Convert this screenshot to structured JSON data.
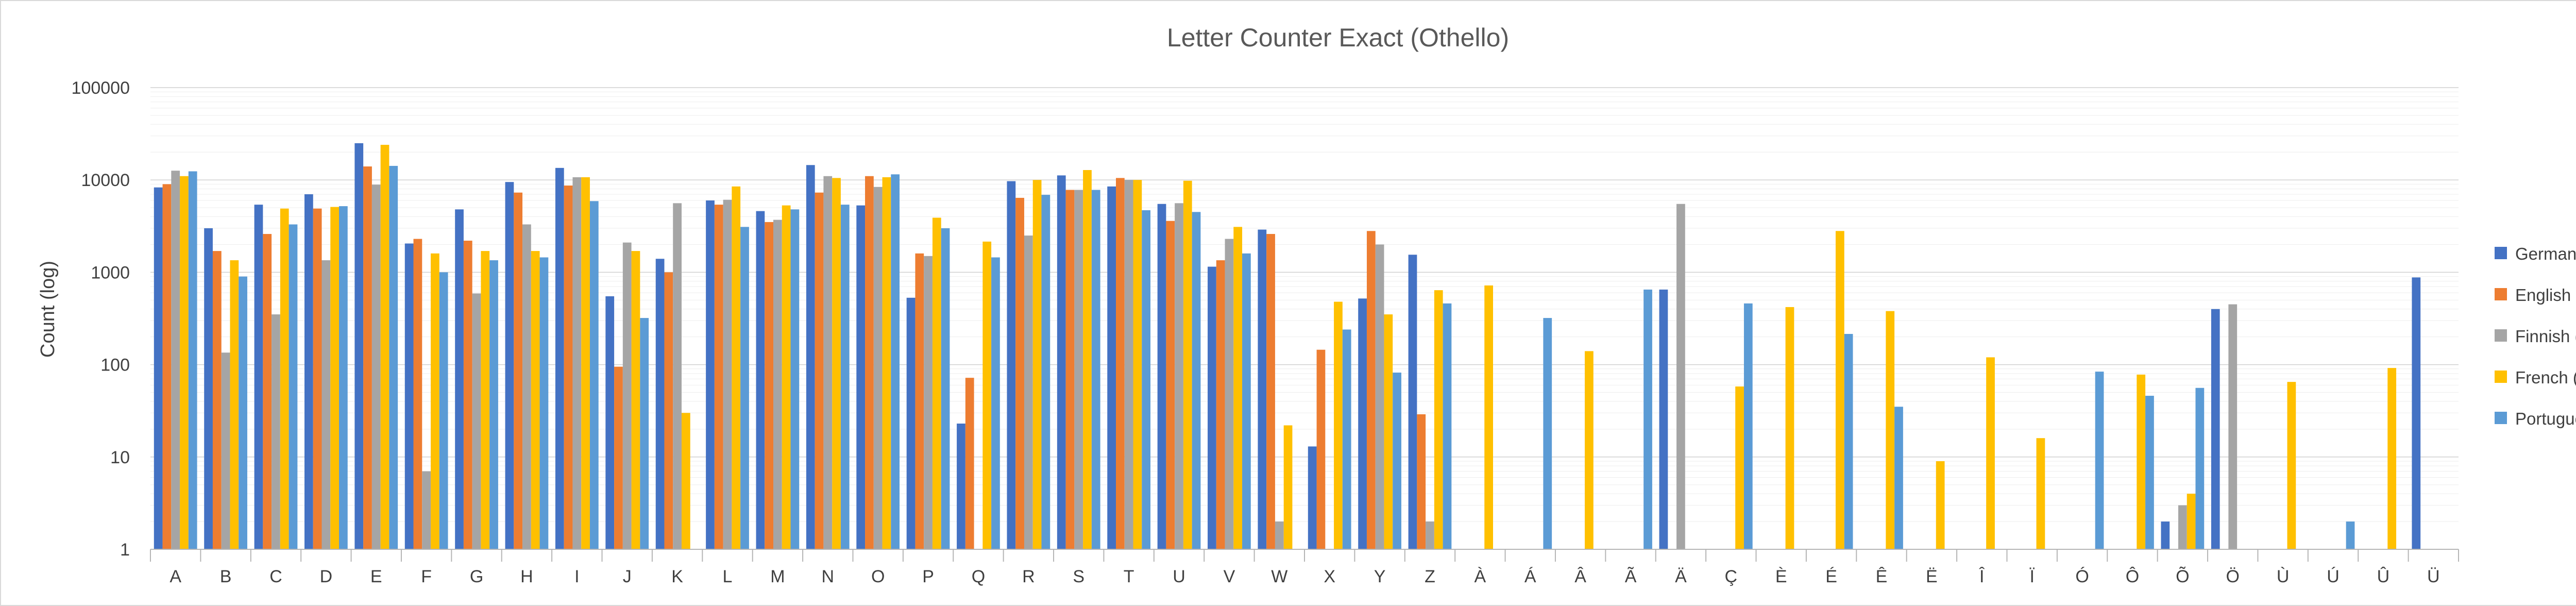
{
  "chart_data": {
    "type": "bar",
    "title": "Letter Counter Exact (Othello)",
    "xlabel": "",
    "ylabel": "Count (log)",
    "yscale": "log",
    "ylim": [
      1,
      100000
    ],
    "yticks": [
      "1",
      "10",
      "100",
      "1000",
      "10000",
      "100000"
    ],
    "grid": true,
    "legend_position": "right",
    "categories": [
      "A",
      "B",
      "C",
      "D",
      "E",
      "F",
      "G",
      "H",
      "I",
      "J",
      "K",
      "L",
      "M",
      "N",
      "O",
      "P",
      "Q",
      "R",
      "S",
      "T",
      "U",
      "V",
      "W",
      "X",
      "Y",
      "Z",
      "À",
      "Á",
      "Â",
      "Ã",
      "Ä",
      "Ç",
      "È",
      "É",
      "Ê",
      "Ë",
      "Î",
      "Ï",
      "Ó",
      "Ô",
      "Õ",
      "Ö",
      "Ù",
      "Ú",
      "Û",
      "Ü"
    ],
    "series": [
      {
        "name": "German (DE)",
        "color": "#4472C4",
        "values": [
          8300,
          3000,
          5400,
          7000,
          25000,
          2050,
          4800,
          9500,
          13500,
          550,
          1400,
          6000,
          4600,
          14500,
          5300,
          530,
          23,
          9700,
          11200,
          8500,
          5500,
          1150,
          2900,
          13,
          520,
          1550,
          null,
          null,
          null,
          null,
          650,
          null,
          null,
          null,
          null,
          null,
          null,
          null,
          null,
          null,
          2,
          400,
          null,
          null,
          null,
          880
        ]
      },
      {
        "name": "English (EN)",
        "color": "#ED7D31",
        "values": [
          9000,
          1700,
          2600,
          4900,
          14000,
          2300,
          2200,
          7300,
          8700,
          95,
          1000,
          5400,
          3500,
          7300,
          11000,
          1600,
          72,
          6400,
          7800,
          10500,
          3600,
          1350,
          2600,
          145,
          2800,
          29,
          null,
          null,
          null,
          null,
          null,
          null,
          null,
          null,
          null,
          null,
          null,
          null,
          null,
          null,
          null,
          null,
          null,
          null,
          null,
          null
        ]
      },
      {
        "name": "Finnish (FI)",
        "color": "#A5A5A5",
        "values": [
          12600,
          135,
          350,
          1350,
          8900,
          7,
          590,
          3300,
          10700,
          2100,
          5600,
          6100,
          3700,
          11000,
          8400,
          1500,
          null,
          2500,
          7800,
          10000,
          5600,
          2300,
          2,
          null,
          2000,
          2,
          null,
          null,
          null,
          null,
          5500,
          null,
          null,
          null,
          null,
          null,
          null,
          null,
          null,
          null,
          3,
          450,
          null,
          null,
          null,
          null
        ]
      },
      {
        "name": "French (FR)",
        "color": "#FFC000",
        "values": [
          11000,
          1350,
          4900,
          5100,
          24000,
          1600,
          1700,
          1700,
          10700,
          1700,
          30,
          8500,
          5300,
          10500,
          10700,
          3900,
          2150,
          10000,
          12800,
          10000,
          9800,
          3100,
          22,
          480,
          350,
          640,
          720,
          null,
          140,
          null,
          null,
          58,
          420,
          2800,
          380,
          9,
          120,
          16,
          null,
          78,
          4,
          null,
          65,
          null,
          92,
          null
        ]
      },
      {
        "name": "Portuguese (PT)",
        "color": "#5B9BD5",
        "values": [
          12400,
          900,
          3300,
          5200,
          14200,
          1000,
          1350,
          1450,
          5900,
          320,
          null,
          3100,
          4800,
          5400,
          11500,
          3000,
          1450,
          6900,
          7800,
          4700,
          4500,
          1600,
          null,
          240,
          82,
          460,
          null,
          320,
          null,
          650,
          null,
          460,
          null,
          215,
          35,
          null,
          null,
          null,
          84,
          46,
          56,
          null,
          null,
          2,
          null,
          null
        ]
      }
    ]
  }
}
